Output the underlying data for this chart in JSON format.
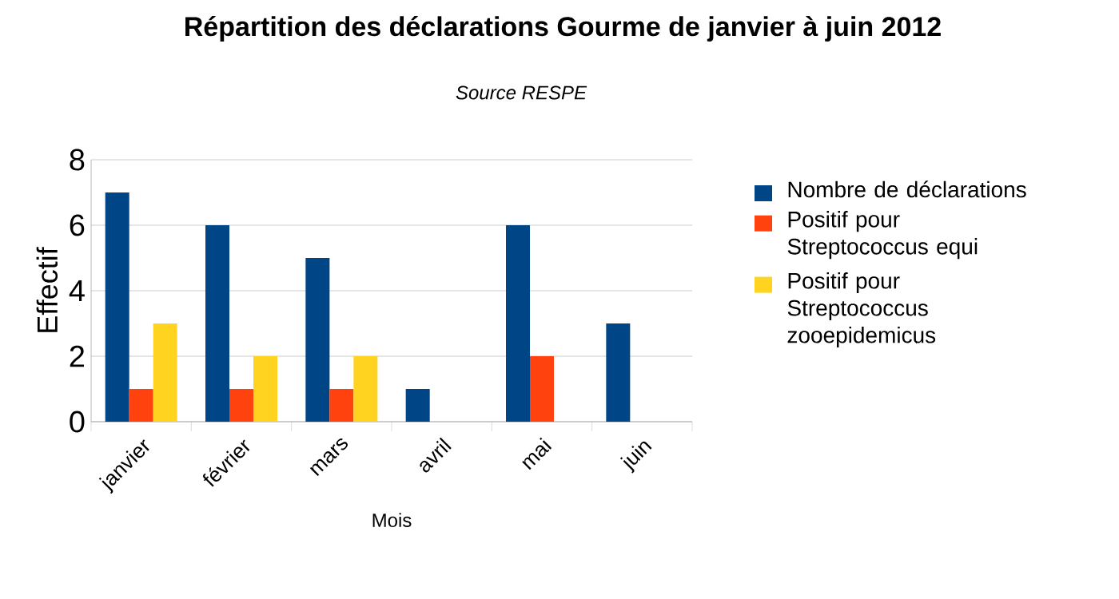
{
  "chart_data": {
    "type": "bar",
    "title": "Répartition des déclarations Gourme de janvier à juin 2012",
    "subtitle": "Source RESPE",
    "xlabel": "Mois",
    "ylabel": "Effectif",
    "categories": [
      "janvier",
      "février",
      "mars",
      "avril",
      "mai",
      "juin"
    ],
    "series": [
      {
        "name": "Nombre de déclarations",
        "color": "#004586",
        "values": [
          7,
          6,
          5,
          1,
          6,
          3
        ]
      },
      {
        "name": "Positif pour Streptococcus equi",
        "color": "#ff420e",
        "values": [
          1,
          1,
          1,
          0,
          2,
          0
        ]
      },
      {
        "name": "Positif pour Streptococcus zooepidemicus",
        "color": "#ffd320",
        "values": [
          3,
          2,
          2,
          0,
          0,
          0
        ]
      }
    ],
    "ylim": [
      0,
      8
    ],
    "yticks": [
      0,
      2,
      4,
      6,
      8
    ],
    "grid": "y",
    "legend": "right"
  }
}
